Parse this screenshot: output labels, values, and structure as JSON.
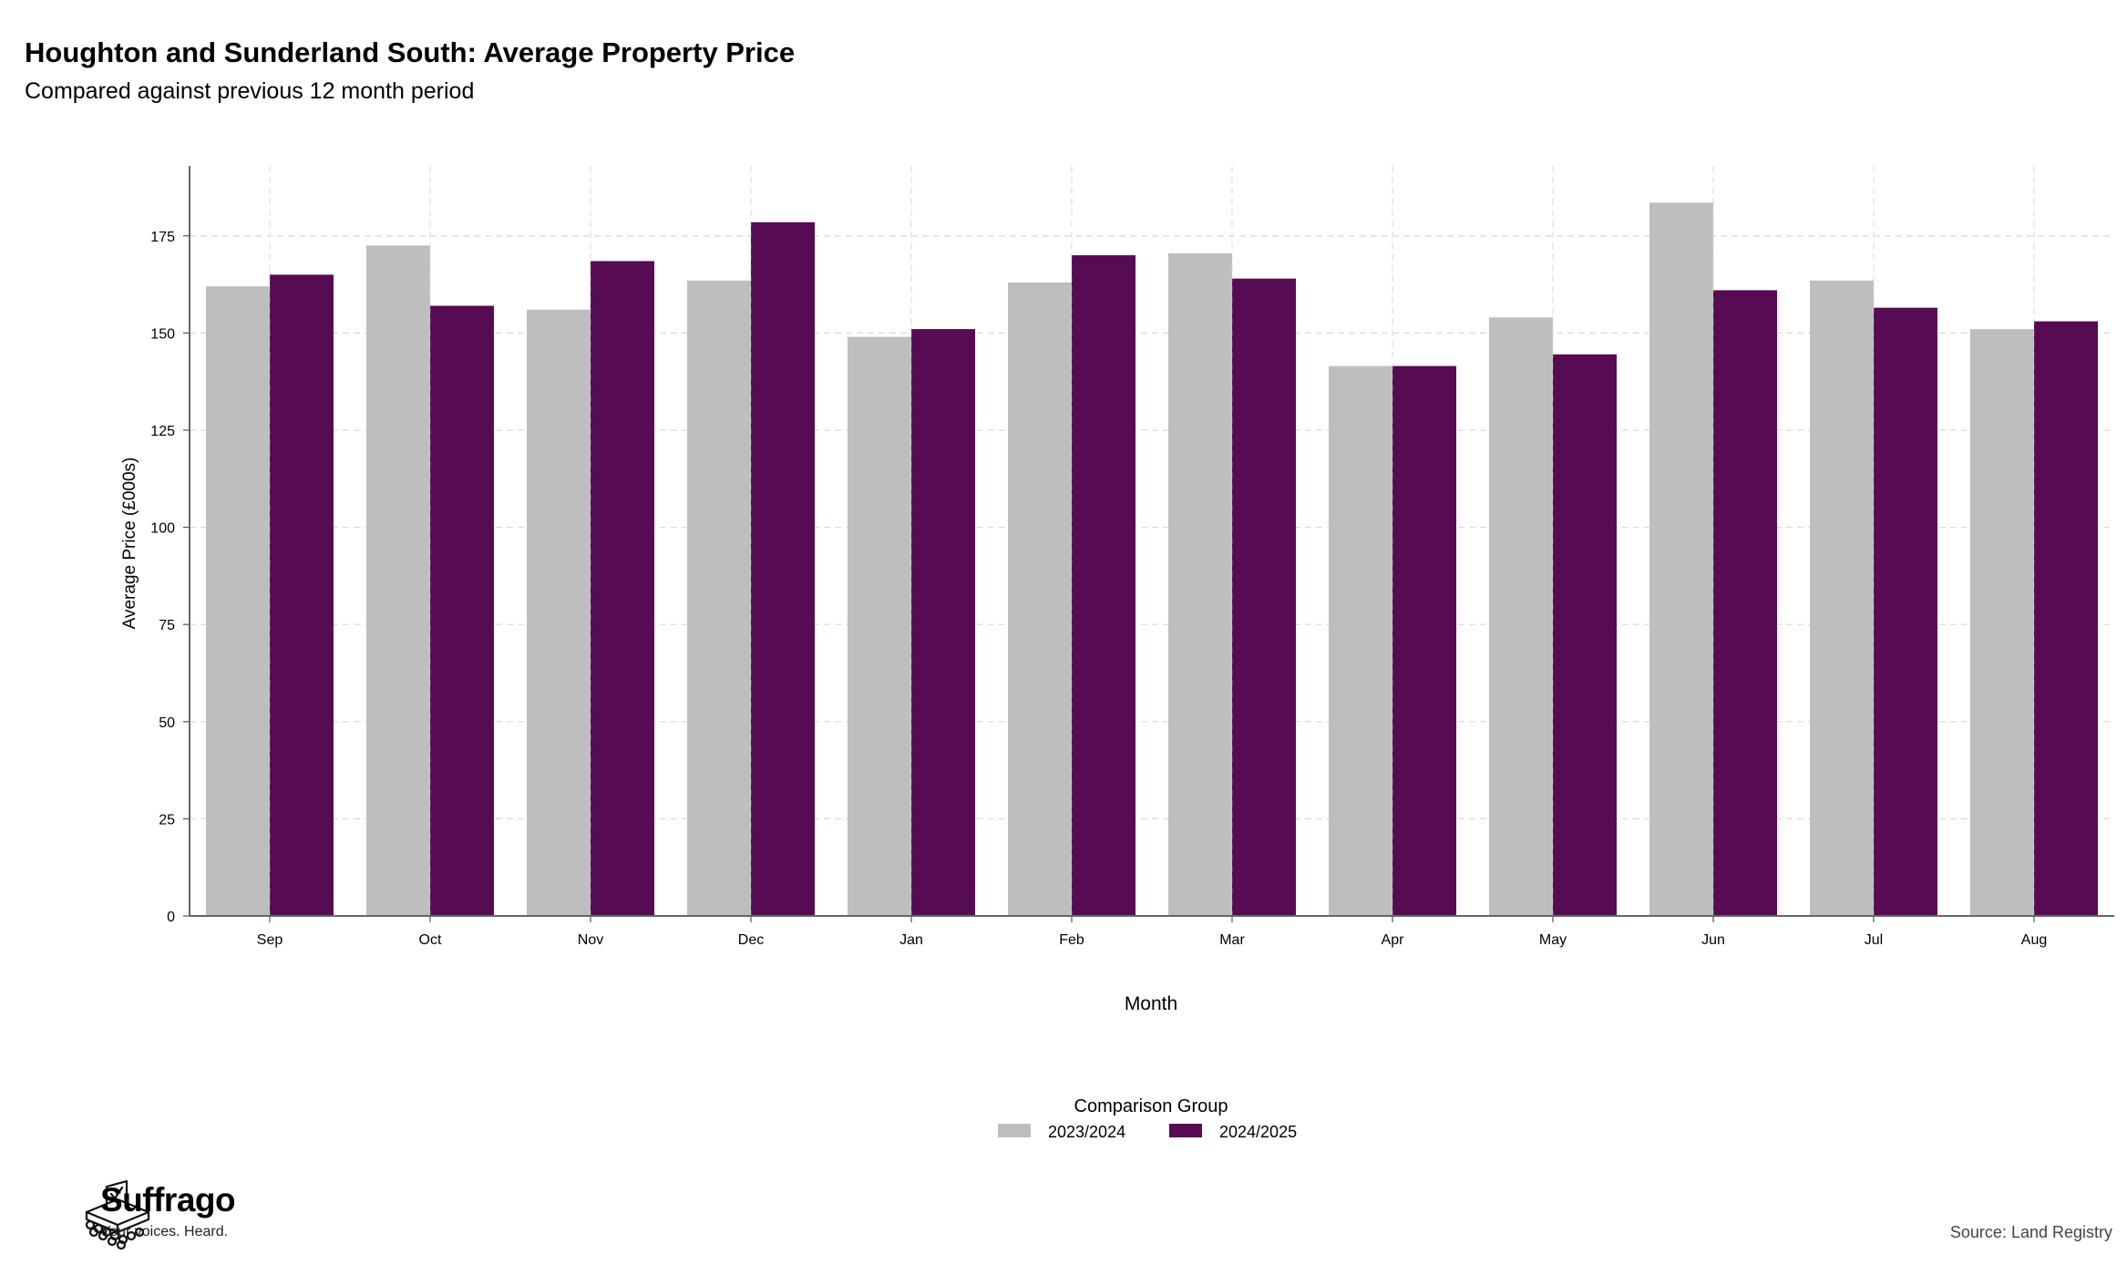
{
  "chart_data": {
    "type": "bar",
    "title": "Houghton and Sunderland South: Average Property Price",
    "subtitle": "Compared against previous 12 month period",
    "xlabel": "Month",
    "ylabel": "Average Price (£000s)",
    "categories": [
      "Sep",
      "Oct",
      "Nov",
      "Dec",
      "Jan",
      "Feb",
      "Mar",
      "Apr",
      "May",
      "Jun",
      "Jul",
      "Aug"
    ],
    "series": [
      {
        "name": "2023/2024",
        "color": "#bebebe",
        "values": [
          162,
          172.5,
          156,
          163.5,
          149,
          163,
          170.5,
          141.5,
          154,
          183.5,
          163.5,
          151
        ]
      },
      {
        "name": "2024/2025",
        "color": "#560b52",
        "values": [
          165,
          157,
          168.5,
          178.5,
          151,
          170,
          164,
          141.5,
          144.5,
          161,
          156.5,
          153
        ]
      }
    ],
    "yticks": [
      0,
      25,
      50,
      75,
      100,
      125,
      150,
      175
    ],
    "ylim": [
      0,
      193
    ],
    "grid": true,
    "legend": {
      "title": "Comparison Group",
      "position": "bottom"
    }
  },
  "branding": {
    "name": "Suffrago",
    "tagline": "Your voices. Heard.",
    "logo_icon": "ballot-box-icon"
  },
  "source": "Source: Land Registry"
}
